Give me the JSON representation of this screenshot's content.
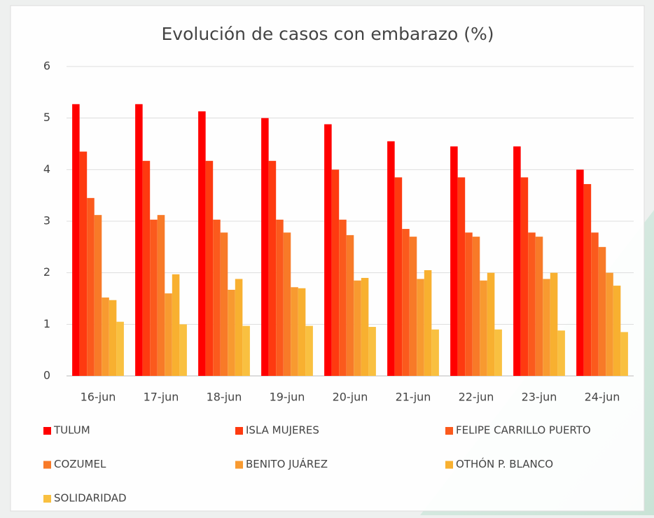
{
  "chart_data": {
    "type": "bar",
    "title": "Evolución de casos con embarazo (%)",
    "categories": [
      "16-jun",
      "17-jun",
      "18-jun",
      "19-jun",
      "20-jun",
      "21-jun",
      "22-jun",
      "23-jun",
      "24-jun"
    ],
    "series": [
      {
        "name": "TULUM",
        "color": "#ff0000",
        "values": [
          5.27,
          5.27,
          5.13,
          5.0,
          4.88,
          4.55,
          4.45,
          4.45,
          4.0
        ]
      },
      {
        "name": "ISLA MUJERES",
        "color": "#fe3a10",
        "values": [
          4.35,
          4.17,
          4.17,
          4.17,
          4.0,
          3.85,
          3.85,
          3.85,
          3.72
        ]
      },
      {
        "name": "FELIPE CARRILLO PUERTO",
        "color": "#fb5a1d",
        "values": [
          3.45,
          3.03,
          3.03,
          3.03,
          3.03,
          2.85,
          2.78,
          2.78,
          2.78
        ]
      },
      {
        "name": "COZUMEL",
        "color": "#f87a28",
        "values": [
          3.12,
          3.12,
          2.78,
          2.78,
          2.73,
          2.7,
          2.7,
          2.7,
          2.5
        ]
      },
      {
        "name": "BENITO JUÁREZ",
        "color": "#f89a30",
        "values": [
          1.52,
          1.6,
          1.67,
          1.72,
          1.85,
          1.88,
          1.85,
          1.88,
          2.0
        ]
      },
      {
        "name": "OTHÓN P. BLANCO",
        "color": "#f8b030",
        "values": [
          1.47,
          1.97,
          1.88,
          1.7,
          1.9,
          2.05,
          2.0,
          2.0,
          1.75
        ]
      },
      {
        "name": "SOLIDARIDAD",
        "color": "#f9c040",
        "values": [
          1.05,
          1.0,
          0.97,
          0.97,
          0.95,
          0.9,
          0.9,
          0.88,
          0.85
        ]
      }
    ],
    "ylim": [
      0,
      6
    ],
    "yticks": [
      0,
      1,
      2,
      3,
      4,
      5,
      6
    ],
    "grid": true,
    "legend": "bottom"
  }
}
